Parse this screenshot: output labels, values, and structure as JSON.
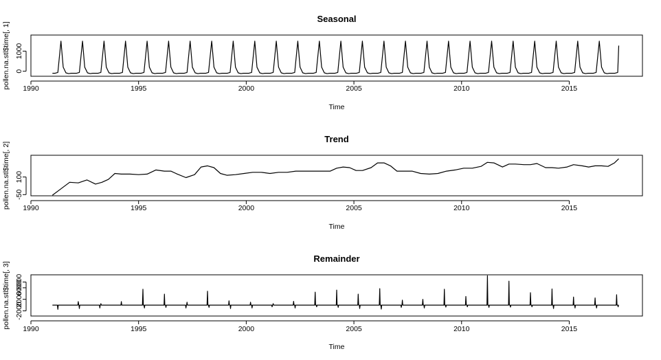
{
  "chart_data": [
    {
      "type": "line",
      "title": "Seasonal",
      "xlabel": "Time",
      "ylabel": "pollen.na.stl$time[, 1]",
      "xlim": [
        1990,
        2018.4
      ],
      "ylim": [
        -250,
        1800
      ],
      "x_ticks": [
        1990,
        1995,
        2000,
        2005,
        2010,
        2015
      ],
      "y_ticks": [
        0,
        1000
      ],
      "series": [
        {
          "x_start": 1991.0,
          "x_end": 2017.3,
          "period": 1,
          "baseline": -100,
          "peak_value": 1500,
          "peak_phase": 0.25,
          "description_values": [
            -100,
            -100,
            -60,
            1500,
            200,
            -80,
            -120,
            -100
          ]
        }
      ]
    },
    {
      "type": "line",
      "title": "Trend",
      "xlabel": "Time",
      "ylabel": "pollen.na.stl$time[, 2]",
      "xlim": [
        1990,
        2018.4
      ],
      "ylim": [
        -60,
        285
      ],
      "x_ticks": [
        1990,
        1995,
        2000,
        2005,
        2010,
        2015
      ],
      "y_ticks": [
        -50,
        100
      ],
      "series": [
        {
          "x": [
            1991.0,
            1991.4,
            1991.8,
            1992.2,
            1992.6,
            1993.0,
            1993.3,
            1993.6,
            1993.9,
            1994.2,
            1994.6,
            1995.0,
            1995.4,
            1995.8,
            1996.2,
            1996.5,
            1996.8,
            1997.2,
            1997.6,
            1997.9,
            1998.2,
            1998.5,
            1998.8,
            1999.1,
            1999.5,
            1999.9,
            2000.3,
            2000.7,
            2001.1,
            2001.5,
            2001.9,
            2002.3,
            2002.7,
            2003.1,
            2003.5,
            2003.9,
            2004.2,
            2004.5,
            2004.8,
            2005.1,
            2005.4,
            2005.8,
            2006.1,
            2006.4,
            2006.7,
            2007.0,
            2007.3,
            2007.7,
            2008.1,
            2008.5,
            2008.9,
            2009.3,
            2009.7,
            2010.1,
            2010.5,
            2010.9,
            2011.2,
            2011.5,
            2011.9,
            2012.2,
            2012.5,
            2012.9,
            2013.2,
            2013.5,
            2013.9,
            2014.2,
            2014.5,
            2014.9,
            2015.2,
            2015.6,
            2015.9,
            2016.2,
            2016.5,
            2016.8,
            2017.1,
            2017.3
          ],
          "values": [
            -55,
            0,
            55,
            50,
            75,
            40,
            55,
            80,
            130,
            125,
            125,
            120,
            125,
            160,
            150,
            150,
            125,
            95,
            120,
            185,
            195,
            180,
            130,
            115,
            120,
            130,
            140,
            140,
            130,
            140,
            140,
            150,
            150,
            150,
            150,
            150,
            175,
            185,
            180,
            155,
            155,
            180,
            220,
            220,
            195,
            150,
            150,
            150,
            130,
            125,
            130,
            150,
            160,
            175,
            175,
            190,
            225,
            220,
            185,
            210,
            210,
            205,
            205,
            215,
            180,
            180,
            175,
            185,
            205,
            195,
            185,
            195,
            195,
            190,
            220,
            255
          ]
        }
      ]
    },
    {
      "type": "line",
      "title": "Remainder",
      "xlabel": "Time",
      "ylabel": "pollen.na.stl$time[, 3]",
      "xlim": [
        1990,
        2018.4
      ],
      "ylim": [
        -3800,
        10500
      ],
      "x_ticks": [
        1990,
        1995,
        2000,
        2005,
        2010,
        2015
      ],
      "y_ticks": [
        -2000,
        2000,
        6000,
        8000
      ],
      "series": [
        {
          "x_start": 1991.0,
          "x_end": 2017.3,
          "baseline": 0,
          "spikes": [
            {
              "x": 1991.25,
              "value": -1500
            },
            {
              "x": 1992.2,
              "value": 1200
            },
            {
              "x": 1992.25,
              "value": -1200
            },
            {
              "x": 1993.2,
              "value": -1000
            },
            {
              "x": 1993.25,
              "value": 500
            },
            {
              "x": 1994.2,
              "value": 1200
            },
            {
              "x": 1995.2,
              "value": 5500
            },
            {
              "x": 1995.27,
              "value": -1000
            },
            {
              "x": 1996.2,
              "value": 3800
            },
            {
              "x": 1996.27,
              "value": -800
            },
            {
              "x": 1997.2,
              "value": -1000
            },
            {
              "x": 1997.25,
              "value": 1000
            },
            {
              "x": 1998.2,
              "value": 4800
            },
            {
              "x": 1998.27,
              "value": -800
            },
            {
              "x": 1999.2,
              "value": 1500
            },
            {
              "x": 1999.27,
              "value": -1200
            },
            {
              "x": 2000.2,
              "value": 1000
            },
            {
              "x": 2000.27,
              "value": -1000
            },
            {
              "x": 2001.2,
              "value": -600
            },
            {
              "x": 2001.25,
              "value": 500
            },
            {
              "x": 2002.2,
              "value": 1300
            },
            {
              "x": 2002.27,
              "value": -1000
            },
            {
              "x": 2003.2,
              "value": 4500
            },
            {
              "x": 2003.27,
              "value": -600
            },
            {
              "x": 2004.2,
              "value": 5200
            },
            {
              "x": 2004.27,
              "value": -800
            },
            {
              "x": 2005.2,
              "value": 3800
            },
            {
              "x": 2005.27,
              "value": -1200
            },
            {
              "x": 2006.2,
              "value": 5700
            },
            {
              "x": 2006.27,
              "value": -1400
            },
            {
              "x": 2007.2,
              "value": -800
            },
            {
              "x": 2007.25,
              "value": 1700
            },
            {
              "x": 2008.2,
              "value": 2000
            },
            {
              "x": 2008.27,
              "value": -1000
            },
            {
              "x": 2009.2,
              "value": 5500
            },
            {
              "x": 2009.27,
              "value": -700
            },
            {
              "x": 2010.2,
              "value": 3000
            },
            {
              "x": 2010.27,
              "value": -600
            },
            {
              "x": 2011.2,
              "value": 10200
            },
            {
              "x": 2011.27,
              "value": -800
            },
            {
              "x": 2012.2,
              "value": 8300
            },
            {
              "x": 2012.27,
              "value": -700
            },
            {
              "x": 2013.2,
              "value": 4300
            },
            {
              "x": 2013.27,
              "value": -600
            },
            {
              "x": 2014.2,
              "value": 5600
            },
            {
              "x": 2014.27,
              "value": -1200
            },
            {
              "x": 2015.2,
              "value": 2800
            },
            {
              "x": 2015.27,
              "value": -1000
            },
            {
              "x": 2016.2,
              "value": 2500
            },
            {
              "x": 2016.27,
              "value": -1000
            },
            {
              "x": 2017.2,
              "value": 3600
            },
            {
              "x": 2017.27,
              "value": -600
            }
          ]
        }
      ]
    }
  ]
}
